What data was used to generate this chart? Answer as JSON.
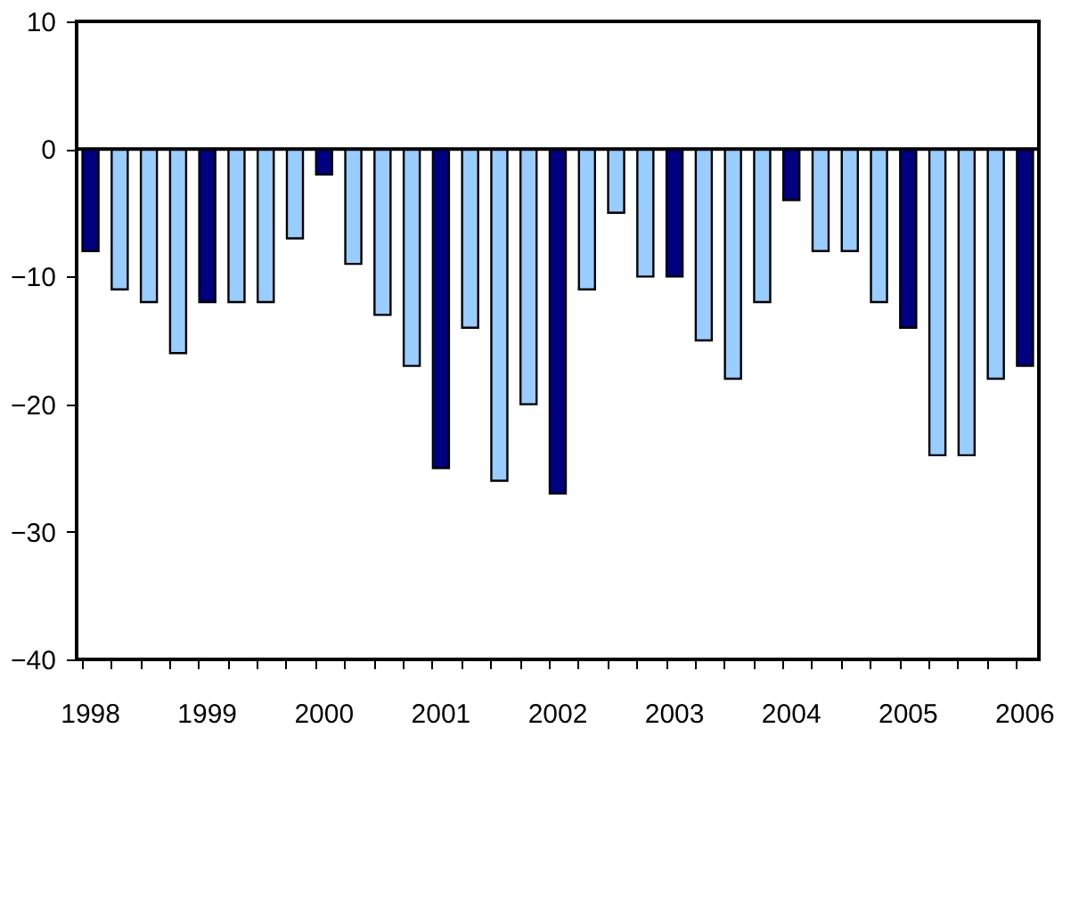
{
  "chart_data": {
    "type": "bar",
    "categories": [
      "1998",
      null,
      null,
      null,
      "1999",
      null,
      null,
      null,
      "2000",
      null,
      null,
      null,
      "2001",
      null,
      null,
      null,
      "2002",
      null,
      null,
      null,
      "2003",
      null,
      null,
      null,
      "2004",
      null,
      null,
      null,
      "2005",
      null,
      null,
      null,
      "2006"
    ],
    "values": [
      -8,
      -11,
      -12,
      -16,
      -12,
      -12,
      -12,
      -7,
      -2,
      -9,
      -13,
      -17,
      -25,
      -14,
      -26,
      -20,
      -27,
      -11,
      -5,
      -10,
      -10,
      -15,
      -18,
      -12,
      -4,
      -8,
      -8,
      -12,
      -14,
      -24,
      -24,
      -18,
      -17
    ],
    "colors": [
      "#000080",
      "#99ccff",
      "#99ccff",
      "#99ccff",
      "#000080",
      "#99ccff",
      "#99ccff",
      "#99ccff",
      "#000080",
      "#99ccff",
      "#99ccff",
      "#99ccff",
      "#000080",
      "#99ccff",
      "#99ccff",
      "#99ccff",
      "#000080",
      "#99ccff",
      "#99ccff",
      "#99ccff",
      "#000080",
      "#99ccff",
      "#99ccff",
      "#99ccff",
      "#000080",
      "#99ccff",
      "#99ccff",
      "#99ccff",
      "#000080",
      "#99ccff",
      "#99ccff",
      "#99ccff",
      "#000080"
    ],
    "ylim": [
      -40,
      10
    ],
    "yticks": [
      -40,
      -30,
      -20,
      -10,
      0,
      10
    ],
    "ref_lines": [
      {
        "axis": "y",
        "value": 0,
        "color": "#000000"
      }
    ],
    "grid": false
  }
}
